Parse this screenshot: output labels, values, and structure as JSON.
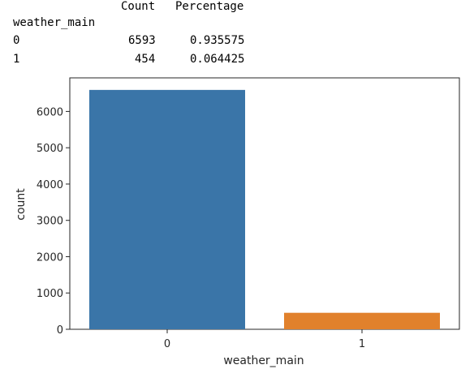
{
  "dataframe": {
    "columns": [
      "Count",
      "Percentage"
    ],
    "index_name": "weather_main",
    "rows": [
      {
        "index": "0",
        "count": "6593",
        "percentage": "0.935575"
      },
      {
        "index": "1",
        "count": "454",
        "percentage": "0.064425"
      }
    ]
  },
  "chart_data": {
    "type": "bar",
    "categories": [
      "0",
      "1"
    ],
    "values": [
      6593,
      454
    ],
    "xlabel": "weather_main",
    "ylabel": "count",
    "ylim": [
      0,
      6925
    ],
    "yticks": [
      0,
      1000,
      2000,
      3000,
      4000,
      5000,
      6000
    ],
    "colors": [
      "#3a75a8",
      "#e1812c"
    ],
    "grid": false
  }
}
